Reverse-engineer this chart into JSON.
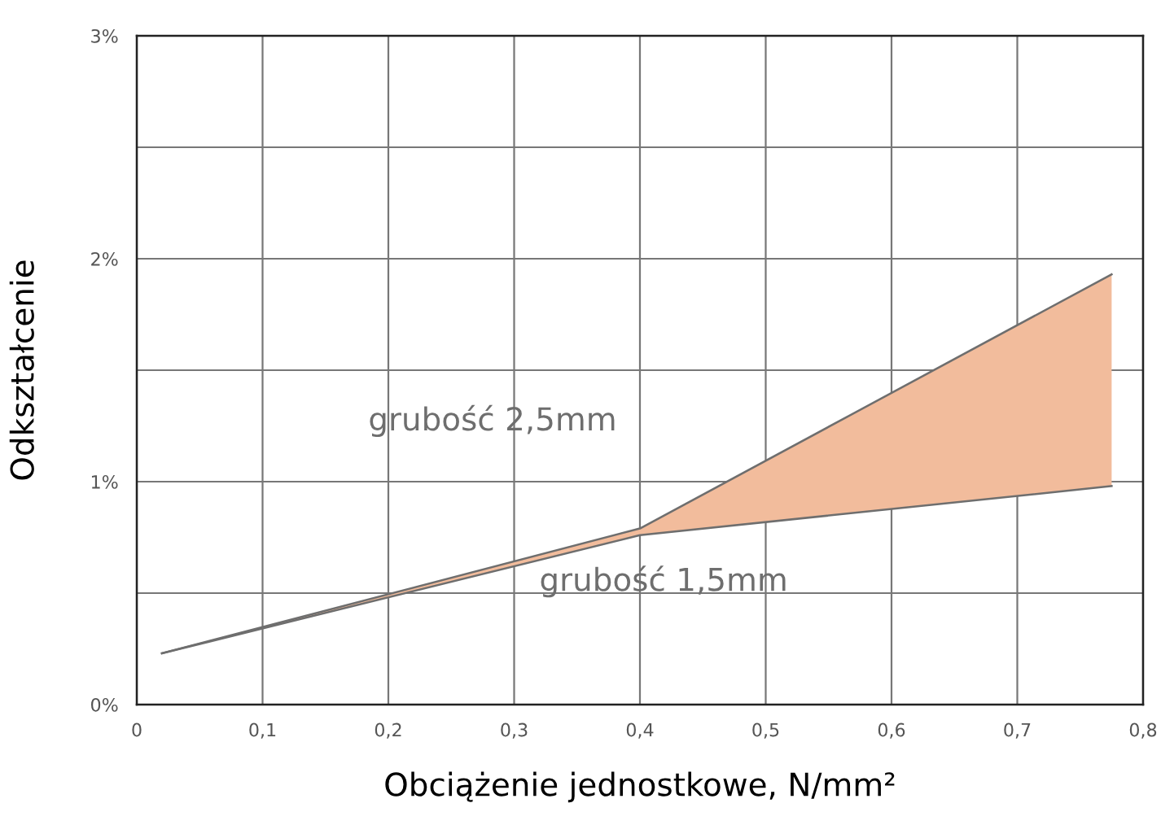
{
  "chart_data": {
    "type": "line",
    "xlabel": "Obciążenie jednostkowe, N/mm²",
    "ylabel": "Odkształcenie",
    "color": "#f2bc9c",
    "x": [
      0.02,
      0.4,
      0.775
    ],
    "series": [
      {
        "name": "grubość 2,5mm",
        "color": "#6e6e6e",
        "values": [
          0.23,
          0.79,
          1.93
        ]
      },
      {
        "name": "grubość 1,5mm",
        "color": "#6e6e6e",
        "values": [
          0.23,
          0.76,
          0.98
        ],
        "lower": [
          0.23,
          0.76,
          0.98
        ],
        "upper": [
          0.23,
          0.79,
          1.93
        ]
      }
    ],
    "xlim": [
      0,
      0.8
    ],
    "xticks": [
      {
        "value": 0,
        "label": "0"
      },
      {
        "value": 0.1,
        "label": "0,1"
      },
      {
        "value": 0.2,
        "label": "0,2"
      },
      {
        "value": 0.3,
        "label": "0,3"
      },
      {
        "value": 0.4,
        "label": "0,4"
      },
      {
        "value": 0.5,
        "label": "0,5"
      },
      {
        "value": 0.6,
        "label": "0,6"
      },
      {
        "value": 0.7,
        "label": "0,7"
      },
      {
        "value": 0.8,
        "label": "0,8"
      }
    ],
    "ylim": [
      0,
      3
    ],
    "yticks": [
      {
        "value": 0,
        "label": "0%"
      },
      {
        "value": 0.5,
        "label": null
      },
      {
        "value": 1,
        "label": "1%"
      },
      {
        "value": 1.5,
        "label": null
      },
      {
        "value": 2,
        "label": "2%"
      },
      {
        "value": 2.5,
        "label": null
      },
      {
        "value": 3,
        "label": "3%"
      }
    ],
    "grid": true,
    "legend": false,
    "marker": "none",
    "line_style": "solid"
  }
}
